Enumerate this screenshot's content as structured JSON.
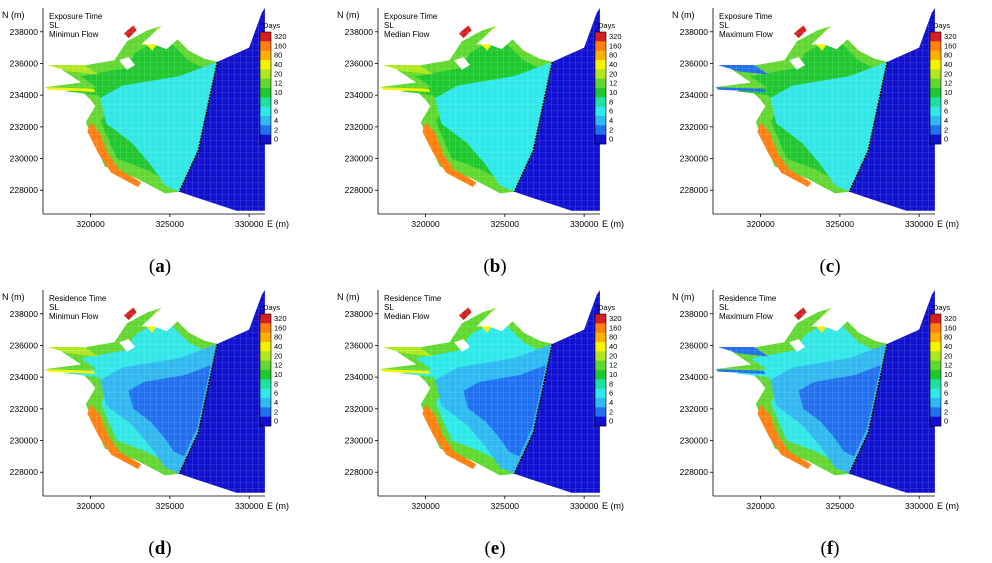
{
  "colorbar": {
    "title": "Days",
    "levels": [
      "320",
      "160",
      "80",
      "40",
      "20",
      "12",
      "10",
      "8",
      "6",
      "4",
      "2",
      "0"
    ],
    "colors": [
      "#d42020",
      "#ff7f0f",
      "#ffb000",
      "#f4f400",
      "#b0e820",
      "#60d830",
      "#20c830",
      "#20e0a0",
      "#30e8e8",
      "#30b8f0",
      "#2070f0",
      "#1010d0"
    ]
  },
  "axes": {
    "ylabel": "N (m)",
    "xlabel": "E (m)",
    "yticks": [
      "238000",
      "236000",
      "234000",
      "232000",
      "230000",
      "228000"
    ],
    "xticks": [
      "320000",
      "325000",
      "330000"
    ],
    "xlim": [
      317000,
      331000
    ],
    "ylim": [
      226500,
      239500
    ]
  },
  "panels": [
    {
      "id": "a",
      "caption": "a",
      "title_lines": [
        "Exposure Time",
        "SL",
        "Minimun Flow"
      ]
    },
    {
      "id": "b",
      "caption": "b",
      "title_lines": [
        "Exposure Time",
        "SL",
        "Median Flow"
      ]
    },
    {
      "id": "c",
      "caption": "c",
      "title_lines": [
        "Exposure Time",
        "SL",
        "Maximum Flow"
      ]
    },
    {
      "id": "d",
      "caption": "d",
      "title_lines": [
        "Residence Time",
        "SL",
        "Minimun Flow"
      ]
    },
    {
      "id": "e",
      "caption": "e",
      "title_lines": [
        "Residence Time",
        "SL",
        "Median Flow"
      ]
    },
    {
      "id": "f",
      "caption": "f",
      "title_lines": [
        "Residence Time",
        "SL",
        "Maximum Flow"
      ]
    }
  ],
  "chart_data": {
    "type": "heatmap",
    "colorbar_title": "Days",
    "colorbar_levels": [
      320,
      160,
      80,
      40,
      20,
      12,
      10,
      8,
      6,
      4,
      2,
      0
    ],
    "xlabel": "E (m)",
    "ylabel": "N (m)",
    "xticks": [
      320000,
      325000,
      330000
    ],
    "yticks": [
      228000,
      230000,
      232000,
      234000,
      236000,
      238000
    ],
    "panels": [
      {
        "caption": "(a)",
        "variable": "Exposure Time",
        "site": "SL",
        "flow": "Minimun Flow"
      },
      {
        "caption": "(b)",
        "variable": "Exposure Time",
        "site": "SL",
        "flow": "Median Flow"
      },
      {
        "caption": "(c)",
        "variable": "Exposure Time",
        "site": "SL",
        "flow": "Maximum Flow"
      },
      {
        "caption": "(d)",
        "variable": "Residence Time",
        "site": "SL",
        "flow": "Minimun Flow"
      },
      {
        "caption": "(e)",
        "variable": "Residence Time",
        "site": "SL",
        "flow": "Median Flow"
      },
      {
        "caption": "(f)",
        "variable": "Residence Time",
        "site": "SL",
        "flow": "Maximum Flow"
      }
    ]
  }
}
